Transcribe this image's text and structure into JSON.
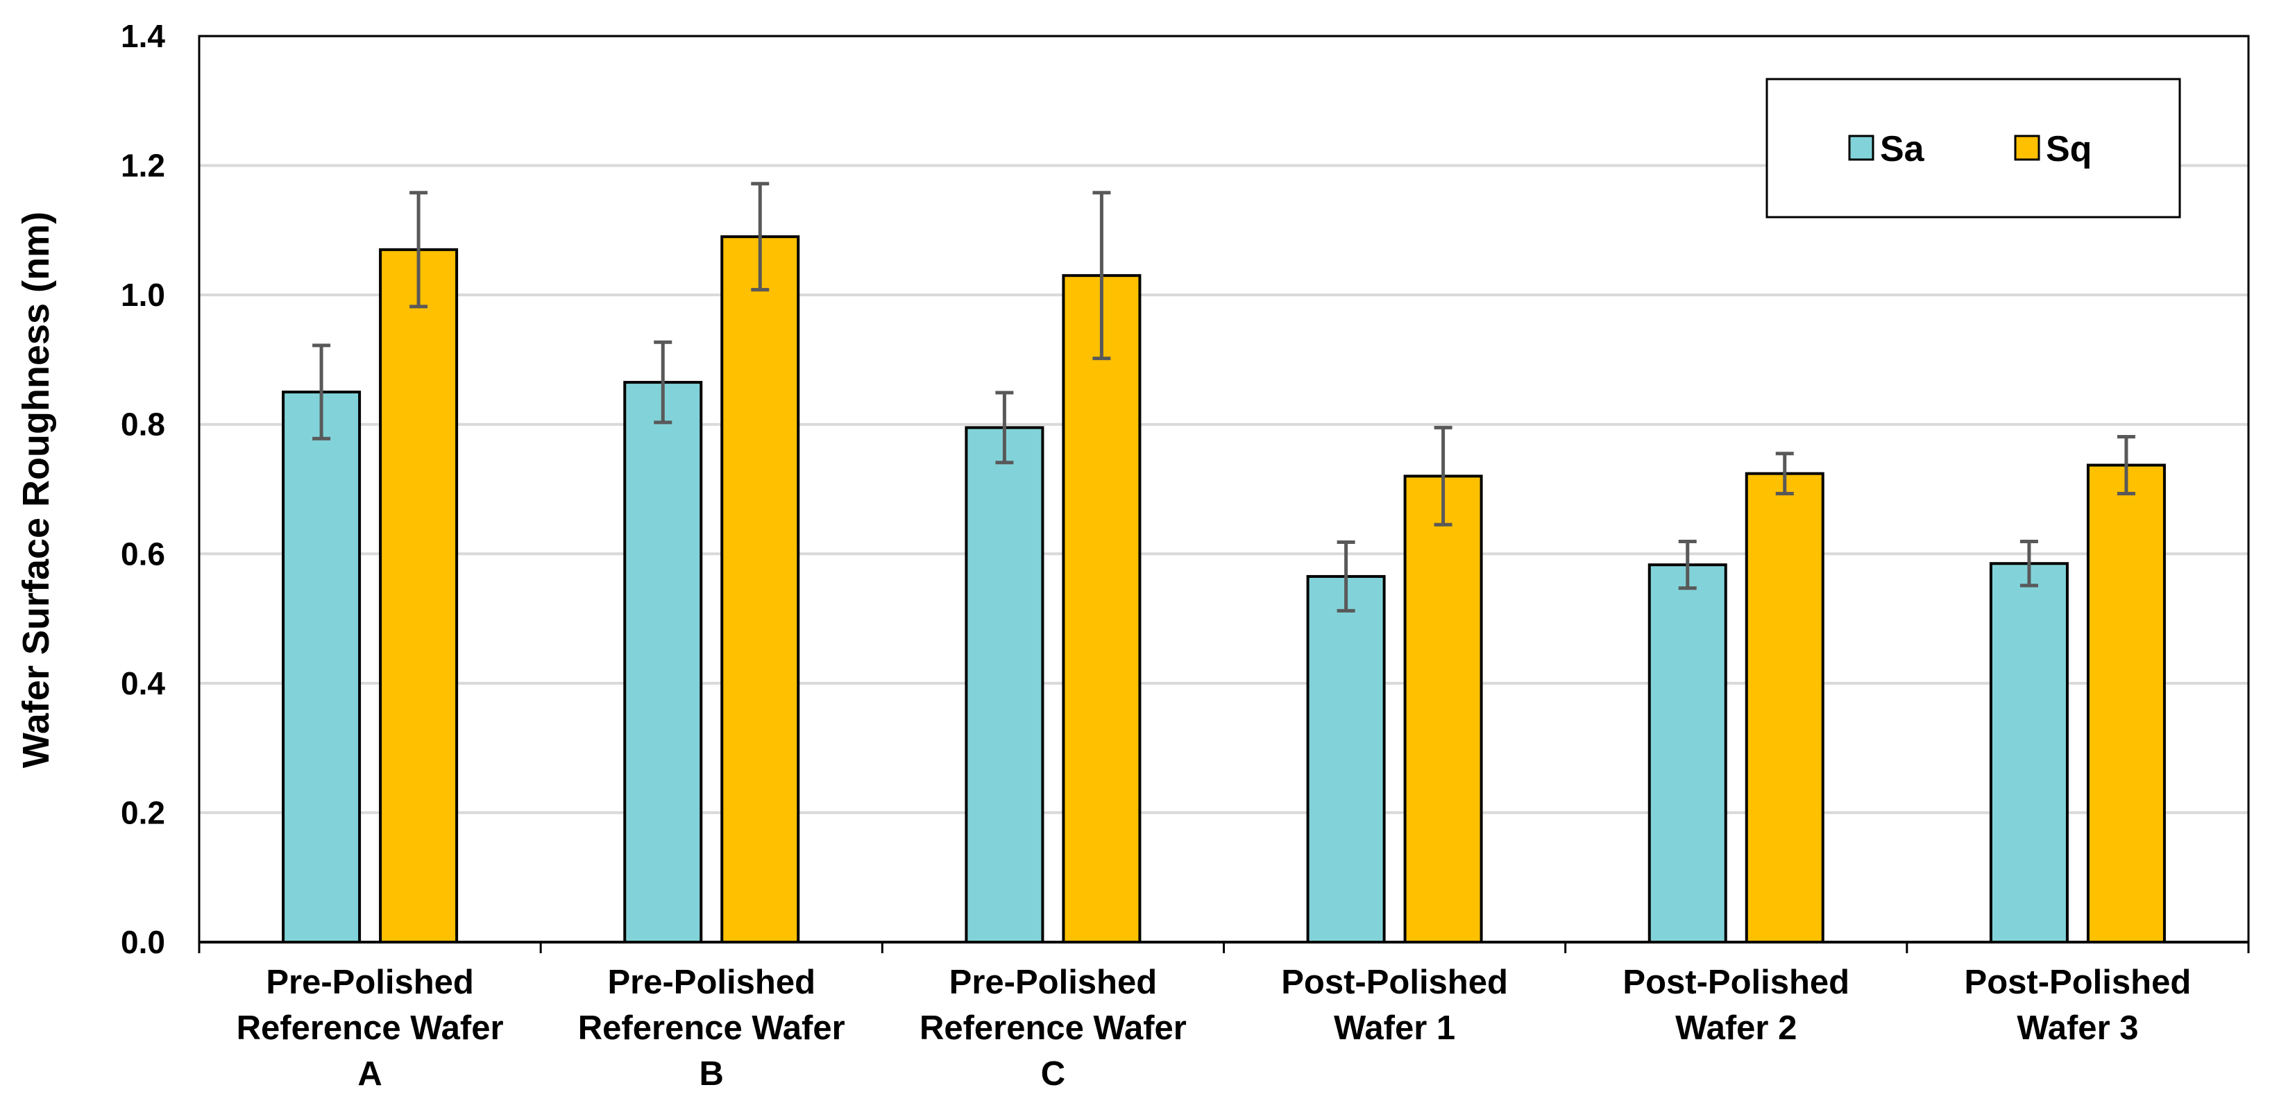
{
  "chart_data": {
    "type": "bar",
    "title": "",
    "xlabel": "",
    "ylabel": "Wafer Surface Roughness (nm)",
    "ylim": [
      0,
      1.4
    ],
    "yticks": [
      "0.0",
      "0.2",
      "0.4",
      "0.6",
      "0.8",
      "1.0",
      "1.2",
      "1.4"
    ],
    "grid": true,
    "legend_position": "top-right",
    "categories": [
      [
        "Pre-Polished",
        "Reference Wafer",
        "A"
      ],
      [
        "Pre-Polished",
        "Reference Wafer",
        "B"
      ],
      [
        "Pre-Polished",
        "Reference Wafer",
        "C"
      ],
      [
        "Post-Polished",
        "Wafer 1"
      ],
      [
        "Post-Polished",
        "Wafer 2"
      ],
      [
        "Post-Polished",
        "Wafer 3"
      ]
    ],
    "series": [
      {
        "name": "Sa",
        "color": "#82D3D9",
        "values": [
          0.85,
          0.865,
          0.795,
          0.565,
          0.583,
          0.585
        ],
        "errors": [
          0.072,
          0.062,
          0.054,
          0.053,
          0.036,
          0.034
        ]
      },
      {
        "name": "Sq",
        "color": "#FFC000",
        "values": [
          1.07,
          1.09,
          1.03,
          0.72,
          0.724,
          0.737
        ],
        "errors": [
          0.088,
          0.082,
          0.128,
          0.075,
          0.031,
          0.044
        ]
      }
    ]
  }
}
